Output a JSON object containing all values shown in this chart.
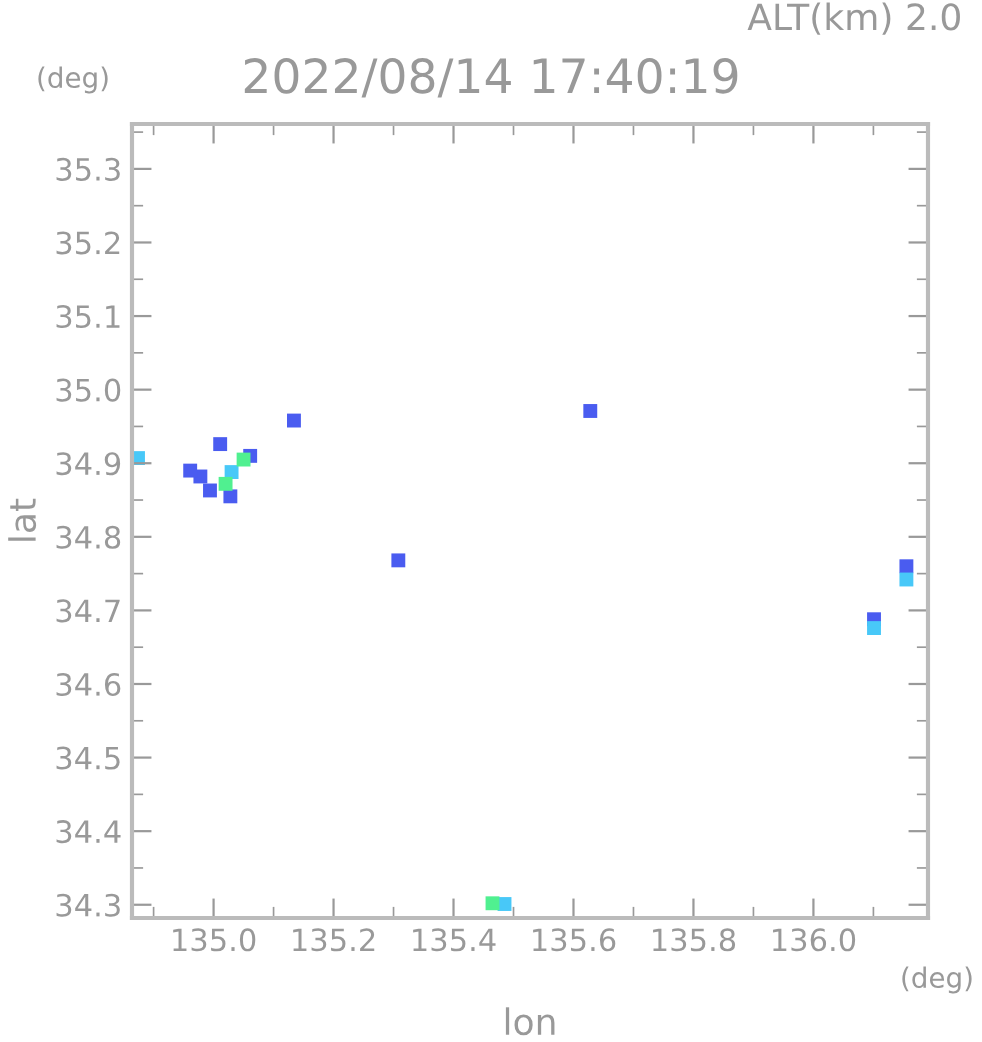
{
  "chart_data": {
    "type": "scatter",
    "title": "2022/08/14 17:40:19",
    "subtitle": "ALT(km) 2.0",
    "xlabel": "lon",
    "ylabel": "lat",
    "annotations": [
      "(deg)",
      "(deg)"
    ],
    "series": [
      {
        "x": [
          134.978,
          135.011,
          135.061,
          134.961,
          134.994,
          135.028,
          135.134,
          135.628,
          135.308,
          136.101,
          136.155
        ],
        "values": [
          34.882,
          34.926,
          34.91,
          34.89,
          34.863,
          34.855,
          34.958,
          34.971,
          34.768,
          34.688,
          34.76
        ],
        "color": "#4a5cf0"
      },
      {
        "x": [
          135.03,
          134.874,
          136.101,
          136.155,
          135.485
        ],
        "values": [
          34.888,
          34.907,
          34.676,
          34.742,
          34.301
        ],
        "color": "#48c8f8"
      },
      {
        "x": [
          135.02,
          135.05,
          135.465
        ],
        "values": [
          34.872,
          34.905,
          34.302
        ],
        "color": "#50f090"
      }
    ],
    "marker": "square",
    "grid": false,
    "legend": false,
    "xlim": [
      134.864,
      136.191
    ],
    "ylim": [
      34.282,
      35.361
    ],
    "xticks": [
      {
        "value": 135,
        "label": "135.0"
      },
      135.2,
      135.4,
      135.6,
      135.8,
      {
        "value": 136,
        "label": "136.0"
      }
    ],
    "yticks": [
      34.3,
      34.4,
      34.5,
      34.6,
      34.7,
      34.8,
      34.9,
      {
        "value": 35,
        "label": "35.0"
      },
      35.1,
      35.2,
      35.3
    ]
  }
}
